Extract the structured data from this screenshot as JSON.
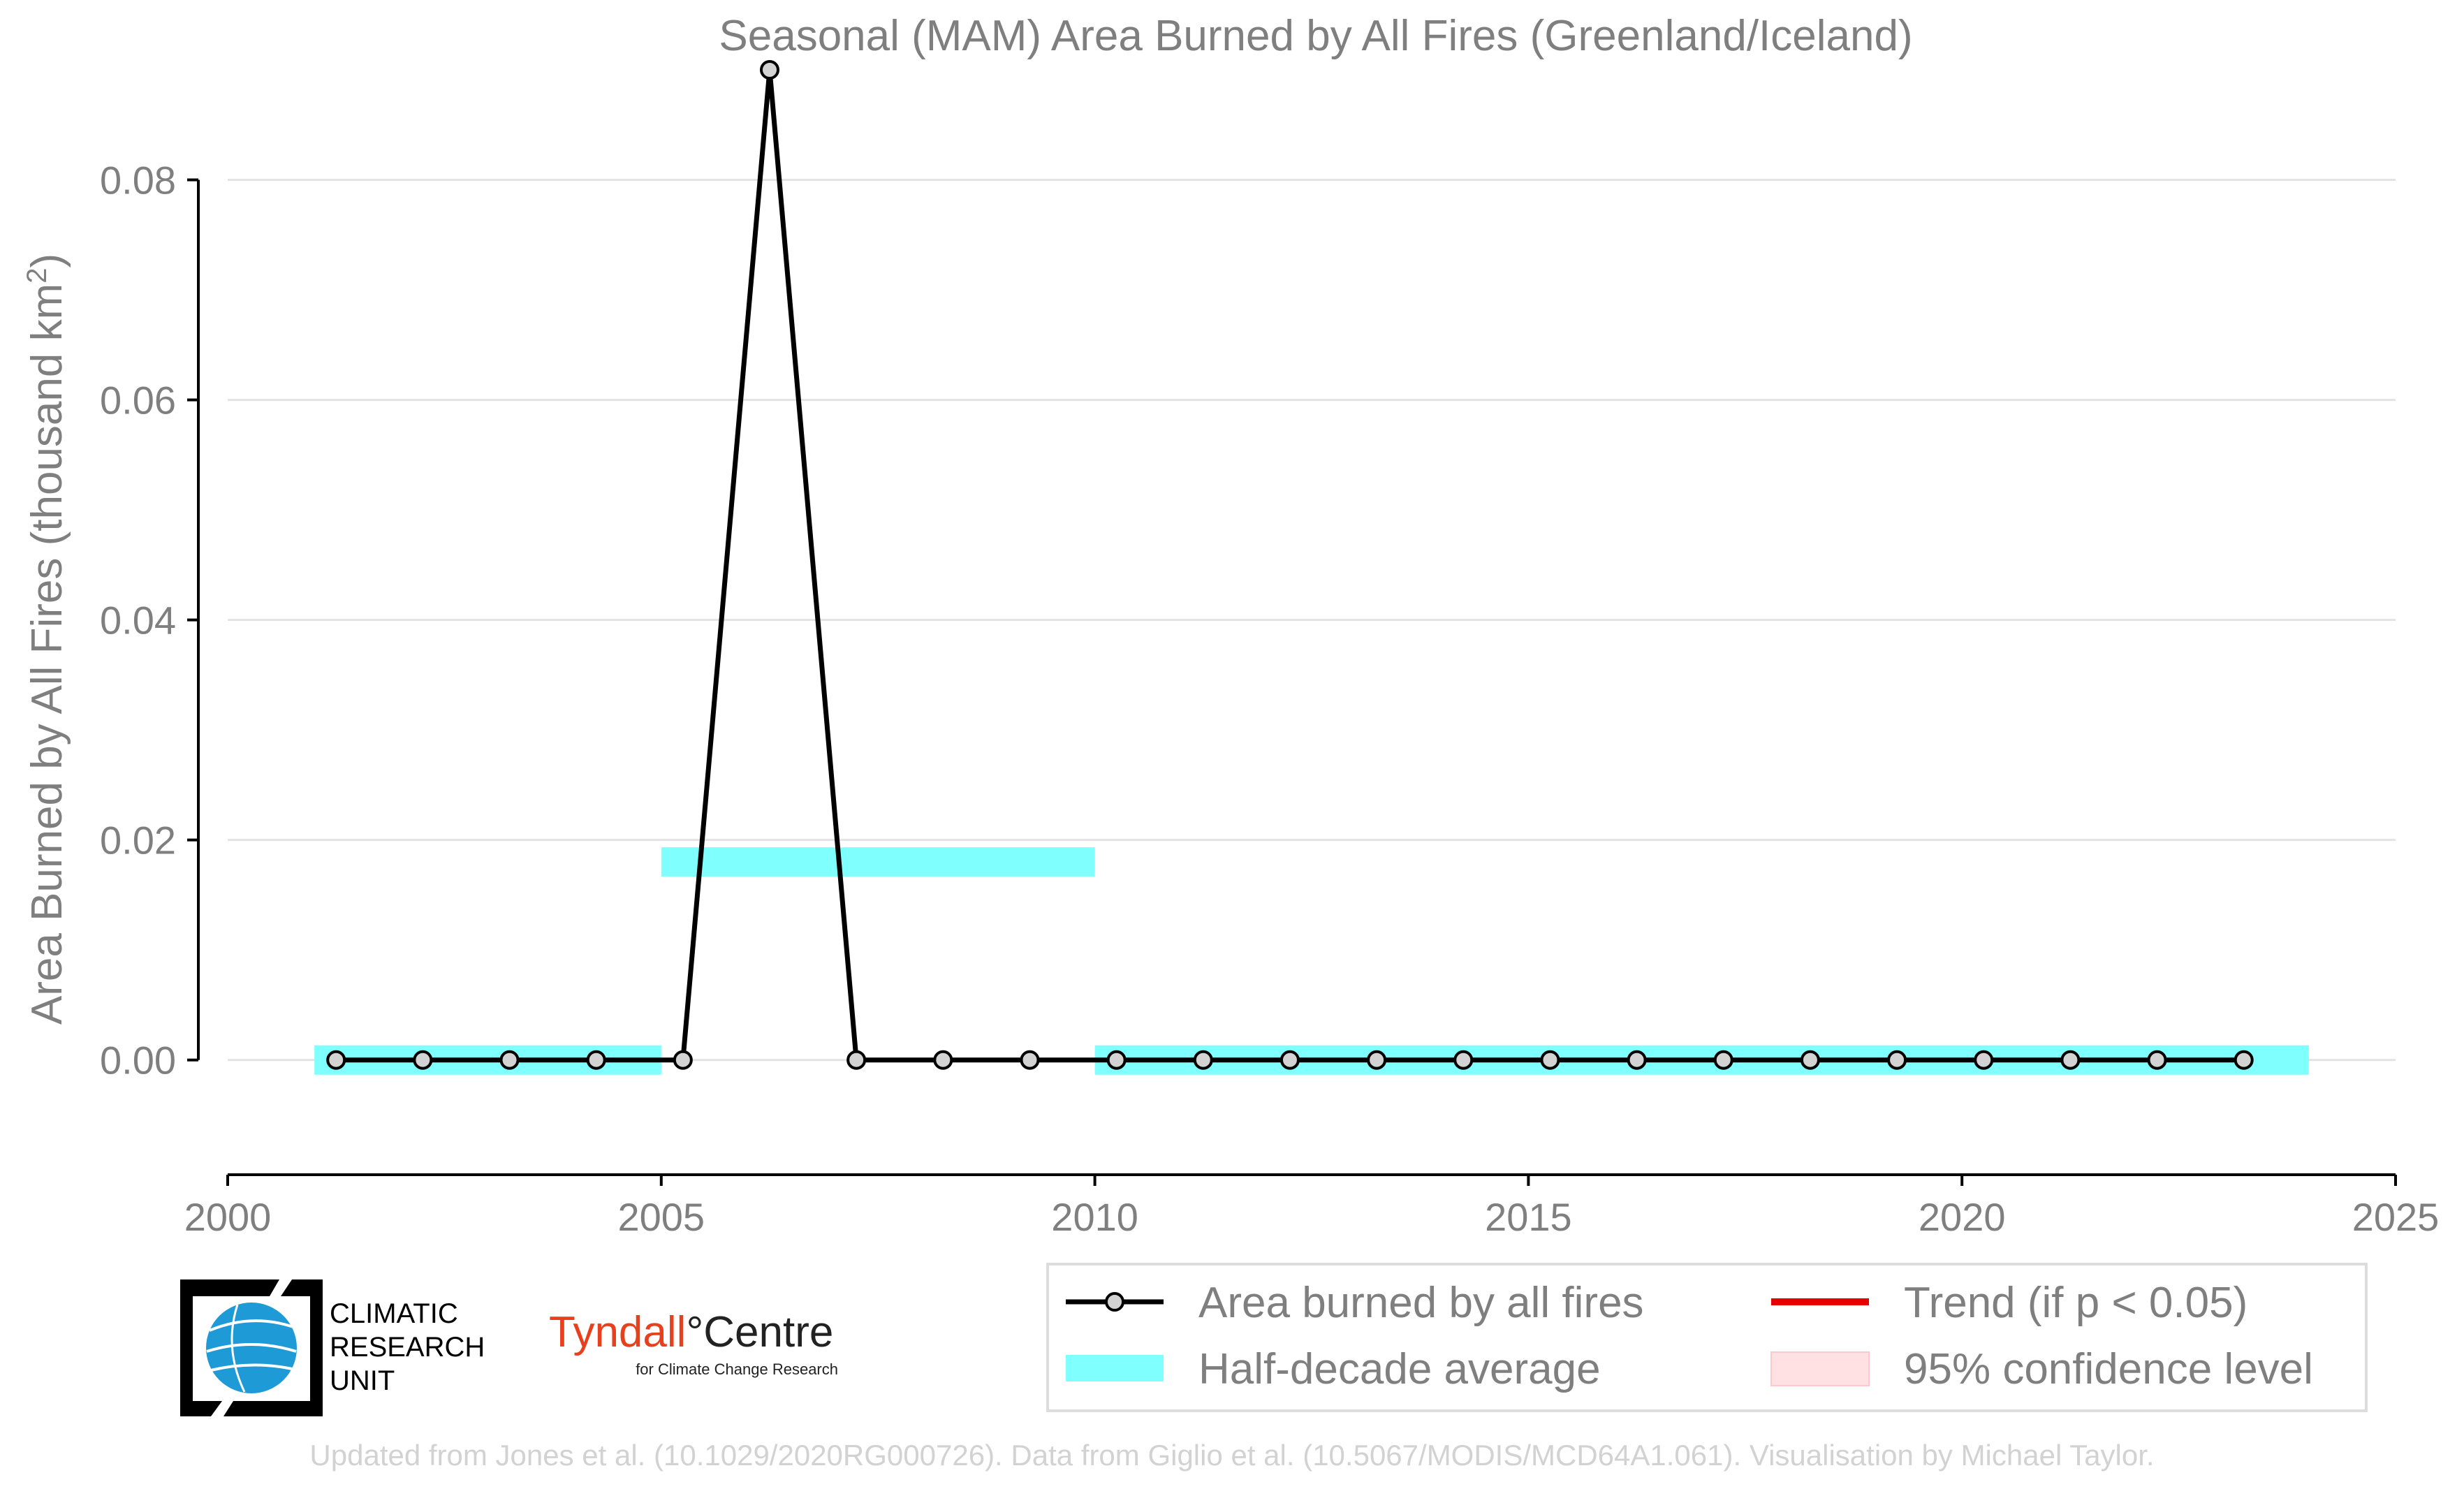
{
  "chart_data": {
    "type": "line",
    "title": "Seasonal (MAM) Area Burned by All Fires (Greenland/Iceland)",
    "ylabel": "Area Burned by All Fires (thousand km²)",
    "ylabel_base": "Area Burned by All Fires (thousand km",
    "ylabel_sup": "2",
    "ylabel_end": ")",
    "xlim": [
      2000,
      2025
    ],
    "ylim": [
      -0.007,
      0.09
    ],
    "x_ticks": [
      2000,
      2005,
      2010,
      2015,
      2020,
      2025
    ],
    "x_tick_labels": [
      "2000",
      "2005",
      "2010",
      "2015",
      "2020",
      "2025"
    ],
    "y_ticks": [
      0.0,
      0.02,
      0.04,
      0.06,
      0.08
    ],
    "y_tick_labels": [
      "0.00",
      "0.02",
      "0.04",
      "0.06",
      "0.08"
    ],
    "grid": "horizontal",
    "series": [
      {
        "name": "Area burned by all fires",
        "color": "#000000",
        "marker_fill": "#d3d3d3",
        "x": [
          2001.25,
          2002.25,
          2003.25,
          2004.25,
          2005.25,
          2006.25,
          2007.25,
          2008.25,
          2009.25,
          2010.25,
          2011.25,
          2012.25,
          2013.25,
          2014.25,
          2015.25,
          2016.25,
          2017.25,
          2018.25,
          2019.25,
          2020.25,
          2021.25,
          2022.25,
          2023.25
        ],
        "y": [
          0,
          0,
          0,
          0,
          0,
          0.09,
          0,
          0,
          0,
          0,
          0,
          0,
          0,
          0,
          0,
          0,
          0,
          0,
          0,
          0,
          0,
          0,
          0
        ]
      }
    ],
    "half_decade_average": {
      "name": "Half-decade average",
      "color": "#80ffff",
      "segments": [
        {
          "x0": 2001,
          "x1": 2005,
          "value": 0.0
        },
        {
          "x0": 2005,
          "x1": 2010,
          "value": 0.018
        },
        {
          "x0": 2010,
          "x1": 2024,
          "value": 0.0
        }
      ]
    },
    "legend": {
      "placement": "bottom-right",
      "entries": [
        {
          "label": "Area burned by all fires",
          "kind": "line-marker",
          "color": "#000000"
        },
        {
          "label": "Trend (if p < 0.05)",
          "kind": "line",
          "color": "#e60000"
        },
        {
          "label": "Half-decade average",
          "kind": "patch",
          "color": "#80ffff"
        },
        {
          "label": "95% confidence level",
          "kind": "patch",
          "color": "#ffe0e3"
        }
      ]
    }
  },
  "logos": {
    "cru_line1": "CLIMATIC",
    "cru_line2": "RESEARCH",
    "cru_line3": "UNIT",
    "tyndall_name": "Tyndall",
    "tyndall_centre": "°Centre",
    "tyndall_sub": "for Climate Change Research"
  },
  "footer": "Updated from Jones et al. (10.1029/2020RG000726). Data from Giglio et al. (10.5067/MODIS/MCD64A1.061). Visualisation by Michael Taylor."
}
